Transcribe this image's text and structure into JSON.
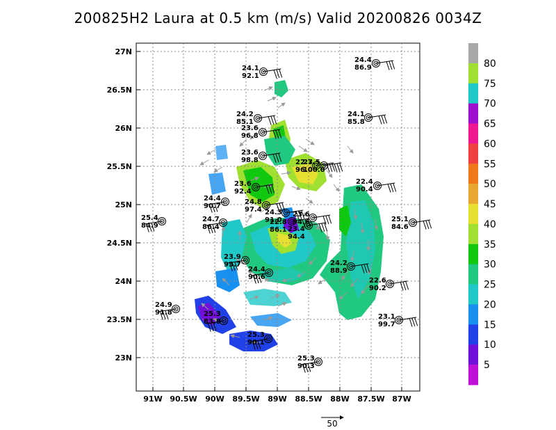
{
  "title": "200825H2 Laura at 0.5 km (m/s) Valid 20200826 0034Z",
  "lon_labels": [
    "91W",
    "90.5W",
    "90W",
    "89.5W",
    "89W",
    "88.5W",
    "88W",
    "87.5W",
    "87W"
  ],
  "lat_labels": [
    "27N",
    "26.5N",
    "26N",
    "25.5N",
    "25N",
    "24.5N",
    "24N",
    "23.5N",
    "23N"
  ],
  "colorbar": {
    "labels": [
      "80",
      "75",
      "70",
      "65",
      "60",
      "55",
      "50",
      "45",
      "40",
      "35",
      "30",
      "25",
      "20",
      "15",
      "10",
      "5"
    ],
    "colors": [
      "#a8a8a8",
      "#a0e030",
      "#20c8c8",
      "#a010d0",
      "#f01890",
      "#f04040",
      "#f07818",
      "#e8a830",
      "#e8e030",
      "#a0e030",
      "#10c810",
      "#20c880",
      "#20c8c8",
      "#1890f0",
      "#2040e8",
      "#7010d8",
      "#c010d8"
    ]
  },
  "reference_vector": {
    "label": "50"
  },
  "stations": [
    {
      "line1": "24.1",
      "line2": "92.1"
    },
    {
      "line1": "24.4",
      "line2": "86.9"
    },
    {
      "line1": "24.2",
      "line2": "85.1"
    },
    {
      "line1": "23.6",
      "line2": "96.8"
    },
    {
      "line1": "24.1",
      "line2": "85.8"
    },
    {
      "line1": "23.6",
      "line2": "98.8"
    },
    {
      "line1": "22.7",
      "line2": "96.0"
    },
    {
      "line1": "23.5",
      "line2": "100.0"
    },
    {
      "line1": "23.6",
      "line2": "92.4"
    },
    {
      "line1": "22.4",
      "line2": "90.4"
    },
    {
      "line1": "25.4",
      "line2": "84.9"
    },
    {
      "line1": "24.4",
      "line2": "90.7"
    },
    {
      "line1": "24.8",
      "line2": "97.4"
    },
    {
      "line1": "24.7",
      "line2": "86.4"
    },
    {
      "line1": "24.3",
      "line2": "91.0"
    },
    {
      "line1": "22.8",
      "line2": "86.1"
    },
    {
      "line1": "23.6",
      "line2": "94.6"
    },
    {
      "line1": "23.4",
      "line2": "94.4"
    },
    {
      "line1": "25.1",
      "line2": "84.6"
    },
    {
      "line1": "23.9",
      "line2": "93.7"
    },
    {
      "line1": "24.2",
      "line2": "88.9"
    },
    {
      "line1": "24.4",
      "line2": "90.6"
    },
    {
      "line1": "22.6",
      "line2": "90.2"
    },
    {
      "line1": "24.9",
      "line2": "91.8"
    },
    {
      "line1": "23.1",
      "line2": "99.7"
    },
    {
      "line1": "25.3",
      "line2": "83.8"
    },
    {
      "line1": "25.3",
      "line2": "90.1"
    },
    {
      "line1": "25.3",
      "line2": "90.3"
    }
  ]
}
